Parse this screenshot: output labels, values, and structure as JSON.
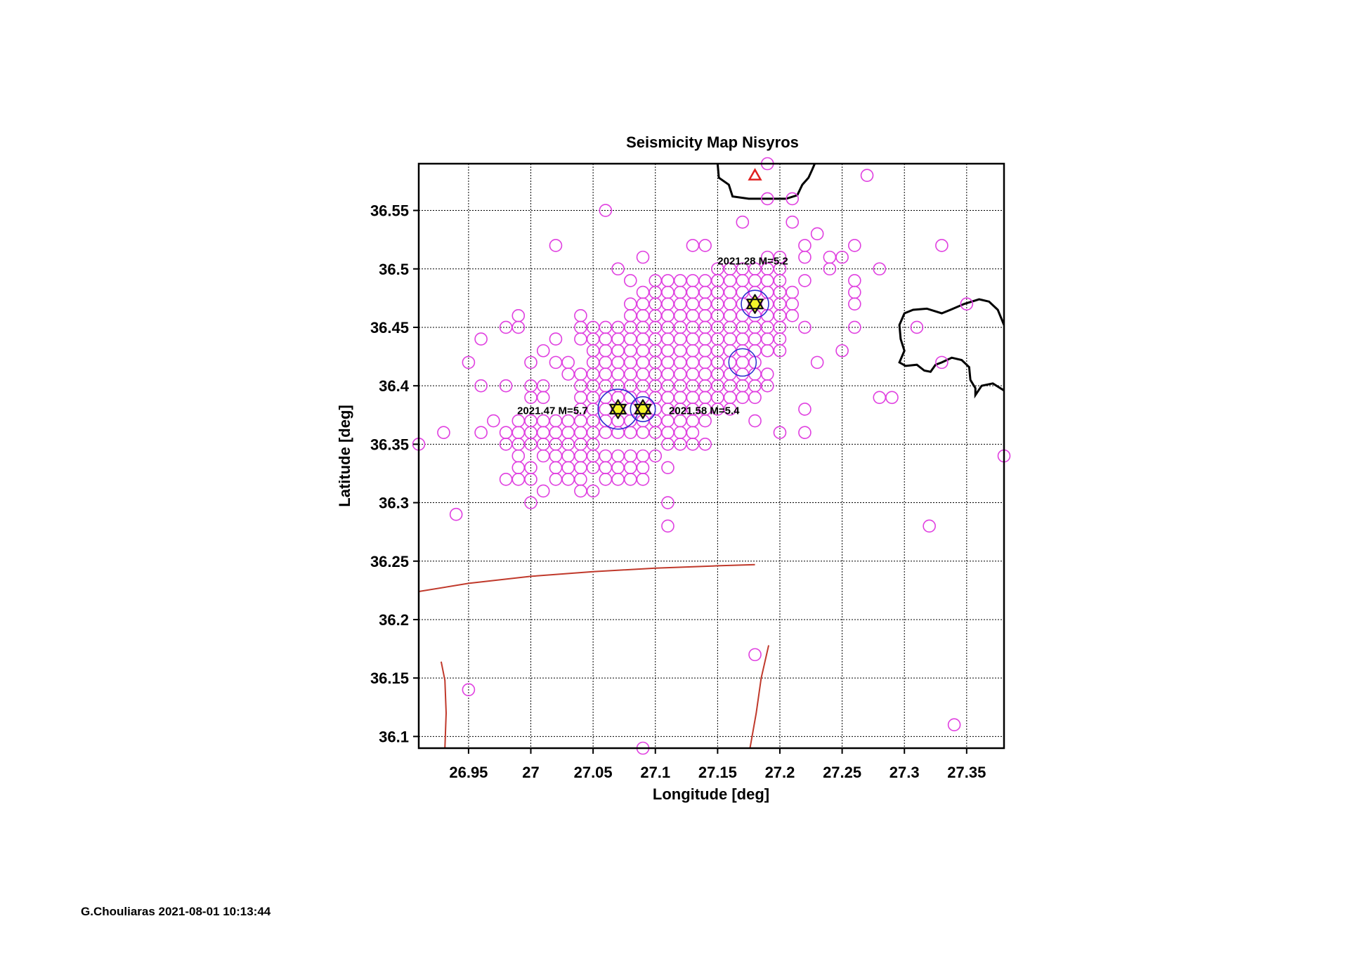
{
  "colors": {
    "event": "#e040e0",
    "mainshock_ring": "#2b2bcf",
    "star_fill": "#f5f52a",
    "star_stroke": "#111111",
    "station": "#e02020",
    "fault": "#c0392b",
    "coast": "#000000",
    "grid": "#000000"
  },
  "footer": "G.Chouliaras 2021-08-01 10:13:44",
  "chart_data": {
    "type": "scatter",
    "title": "Seismicity Map  Nisyros",
    "xlabel": "Longitude [deg]",
    "ylabel": "Latitude [deg]",
    "xlim": [
      26.91,
      27.38
    ],
    "ylim": [
      36.09,
      36.59
    ],
    "xticks": [
      26.95,
      27,
      27.05,
      27.1,
      27.15,
      27.2,
      27.25,
      27.3,
      27.35
    ],
    "xtick_labels": [
      "26.95",
      "27",
      "27.05",
      "27.1",
      "27.15",
      "27.2",
      "27.25",
      "27.3",
      "27.35"
    ],
    "yticks": [
      36.1,
      36.15,
      36.2,
      36.25,
      36.3,
      36.35,
      36.4,
      36.45,
      36.5,
      36.55
    ],
    "ytick_labels": [
      "36.1",
      "36.15",
      "36.2",
      "36.25",
      "36.3",
      "36.35",
      "36.4",
      "36.45",
      "36.5",
      "36.55"
    ],
    "grid": true,
    "events": [
      [
        27.19,
        36.59
      ],
      [
        27.27,
        36.58
      ],
      [
        27.19,
        36.56
      ],
      [
        27.21,
        36.56
      ],
      [
        27.06,
        36.55
      ],
      [
        27.17,
        36.54
      ],
      [
        27.21,
        36.54
      ],
      [
        27.23,
        36.53
      ],
      [
        27.02,
        36.52
      ],
      [
        27.13,
        36.52
      ],
      [
        27.14,
        36.52
      ],
      [
        27.22,
        36.52
      ],
      [
        27.26,
        36.52
      ],
      [
        27.33,
        36.52
      ],
      [
        27.09,
        36.51
      ],
      [
        27.19,
        36.51
      ],
      [
        27.2,
        36.51
      ],
      [
        27.22,
        36.51
      ],
      [
        27.24,
        36.51
      ],
      [
        27.25,
        36.51
      ],
      [
        27.07,
        36.5
      ],
      [
        27.15,
        36.5
      ],
      [
        27.16,
        36.5
      ],
      [
        27.17,
        36.5
      ],
      [
        27.18,
        36.5
      ],
      [
        27.19,
        36.5
      ],
      [
        27.2,
        36.5
      ],
      [
        27.24,
        36.5
      ],
      [
        27.28,
        36.5
      ],
      [
        27.08,
        36.49
      ],
      [
        27.11,
        36.49
      ],
      [
        27.14,
        36.49
      ],
      [
        27.15,
        36.49
      ],
      [
        27.16,
        36.49
      ],
      [
        27.17,
        36.49
      ],
      [
        27.19,
        36.49
      ],
      [
        27.22,
        36.49
      ],
      [
        27.26,
        36.49
      ],
      [
        27.26,
        36.48
      ],
      [
        27.26,
        36.47
      ],
      [
        27.35,
        36.47
      ],
      [
        27.26,
        36.45
      ],
      [
        27.31,
        36.45
      ],
      [
        27.22,
        36.45
      ],
      [
        26.99,
        36.46
      ],
      [
        26.98,
        36.45
      ],
      [
        26.99,
        36.45
      ],
      [
        26.96,
        36.44
      ],
      [
        27.02,
        36.44
      ],
      [
        27.04,
        36.46
      ],
      [
        27.01,
        36.43
      ],
      [
        26.95,
        36.42
      ],
      [
        27.0,
        36.42
      ],
      [
        27.02,
        36.42
      ],
      [
        27.03,
        36.42
      ],
      [
        27.03,
        36.41
      ],
      [
        27.23,
        36.42
      ],
      [
        27.25,
        36.43
      ],
      [
        27.33,
        36.42
      ],
      [
        27.2,
        36.43
      ],
      [
        26.96,
        36.4
      ],
      [
        26.98,
        36.4
      ],
      [
        27.0,
        36.4
      ],
      [
        27.01,
        36.4
      ],
      [
        27.0,
        36.39
      ],
      [
        27.01,
        36.39
      ],
      [
        27.28,
        36.39
      ],
      [
        27.29,
        36.39
      ],
      [
        27.22,
        36.38
      ],
      [
        27.18,
        36.37
      ],
      [
        26.97,
        36.37
      ],
      [
        26.99,
        36.37
      ],
      [
        27.0,
        36.37
      ],
      [
        27.01,
        36.37
      ],
      [
        27.02,
        36.37
      ],
      [
        27.03,
        36.37
      ],
      [
        26.93,
        36.36
      ],
      [
        26.96,
        36.36
      ],
      [
        26.98,
        36.36
      ],
      [
        26.99,
        36.36
      ],
      [
        27.0,
        36.36
      ],
      [
        27.01,
        36.36
      ],
      [
        27.02,
        36.36
      ],
      [
        27.03,
        36.36
      ],
      [
        27.04,
        36.36
      ],
      [
        27.2,
        36.36
      ],
      [
        27.22,
        36.36
      ],
      [
        26.91,
        36.35
      ],
      [
        27.38,
        36.34
      ],
      [
        26.98,
        36.35
      ],
      [
        26.99,
        36.35
      ],
      [
        27.0,
        36.35
      ],
      [
        27.01,
        36.35
      ],
      [
        27.02,
        36.35
      ],
      [
        27.03,
        36.35
      ],
      [
        27.04,
        36.35
      ],
      [
        27.05,
        36.35
      ],
      [
        27.11,
        36.35
      ],
      [
        27.12,
        36.35
      ],
      [
        27.13,
        36.35
      ],
      [
        27.14,
        36.35
      ],
      [
        26.99,
        36.34
      ],
      [
        27.01,
        36.34
      ],
      [
        27.02,
        36.34
      ],
      [
        27.03,
        36.34
      ],
      [
        27.04,
        36.34
      ],
      [
        27.05,
        36.34
      ],
      [
        27.06,
        36.34
      ],
      [
        27.07,
        36.34
      ],
      [
        27.08,
        36.34
      ],
      [
        27.09,
        36.34
      ],
      [
        27.1,
        36.34
      ],
      [
        26.99,
        36.33
      ],
      [
        27.0,
        36.33
      ],
      [
        27.02,
        36.33
      ],
      [
        27.03,
        36.33
      ],
      [
        27.04,
        36.33
      ],
      [
        27.05,
        36.33
      ],
      [
        27.06,
        36.33
      ],
      [
        27.07,
        36.33
      ],
      [
        27.08,
        36.33
      ],
      [
        27.09,
        36.33
      ],
      [
        27.11,
        36.33
      ],
      [
        26.98,
        36.32
      ],
      [
        26.99,
        36.32
      ],
      [
        27.0,
        36.32
      ],
      [
        27.02,
        36.32
      ],
      [
        27.03,
        36.32
      ],
      [
        27.04,
        36.32
      ],
      [
        27.06,
        36.32
      ],
      [
        27.07,
        36.32
      ],
      [
        27.08,
        36.32
      ],
      [
        27.09,
        36.32
      ],
      [
        27.01,
        36.31
      ],
      [
        27.04,
        36.31
      ],
      [
        27.05,
        36.31
      ],
      [
        27.0,
        36.3
      ],
      [
        27.11,
        36.3
      ],
      [
        26.94,
        36.29
      ],
      [
        27.11,
        36.28
      ],
      [
        27.32,
        36.28
      ],
      [
        27.18,
        36.17
      ],
      [
        26.95,
        36.14
      ],
      [
        27.34,
        36.11
      ],
      [
        27.09,
        36.09
      ],
      [
        27.17,
        36.41
      ],
      [
        27.18,
        36.41
      ],
      [
        27.19,
        36.41
      ],
      [
        27.17,
        36.4
      ],
      [
        27.18,
        36.4
      ],
      [
        27.19,
        36.4
      ],
      [
        27.17,
        36.39
      ],
      [
        27.18,
        36.39
      ]
    ],
    "dense_zone": [
      {
        "lat": 36.49,
        "lon_min": 27.1,
        "lon_max": 27.2
      },
      {
        "lat": 36.48,
        "lon_min": 27.09,
        "lon_max": 27.21
      },
      {
        "lat": 36.47,
        "lon_min": 27.08,
        "lon_max": 27.21
      },
      {
        "lat": 36.46,
        "lon_min": 27.08,
        "lon_max": 27.21
      },
      {
        "lat": 36.45,
        "lon_min": 27.04,
        "lon_max": 27.2
      },
      {
        "lat": 36.44,
        "lon_min": 27.04,
        "lon_max": 27.2
      },
      {
        "lat": 36.43,
        "lon_min": 27.05,
        "lon_max": 27.19
      },
      {
        "lat": 36.42,
        "lon_min": 27.05,
        "lon_max": 27.18
      },
      {
        "lat": 36.41,
        "lon_min": 27.04,
        "lon_max": 27.17
      },
      {
        "lat": 36.4,
        "lon_min": 27.04,
        "lon_max": 27.16
      },
      {
        "lat": 36.39,
        "lon_min": 27.04,
        "lon_max": 27.16
      },
      {
        "lat": 36.38,
        "lon_min": 27.04,
        "lon_max": 27.16
      },
      {
        "lat": 36.37,
        "lon_min": 27.04,
        "lon_max": 27.14
      },
      {
        "lat": 36.36,
        "lon_min": 27.05,
        "lon_max": 27.13
      }
    ],
    "mainshocks": [
      {
        "lon": 27.07,
        "lat": 36.38,
        "label": "2021.47 M=5.7",
        "ring_r": 0.016
      },
      {
        "lon": 27.09,
        "lat": 36.38,
        "label": "2021.58 M=5.4",
        "ring_r": 0.01
      },
      {
        "lon": 27.18,
        "lat": 36.47,
        "label": "2021.28 M=5.2",
        "ring_r": 0.011
      }
    ],
    "extra_ring": {
      "lon": 27.17,
      "lat": 36.42,
      "ring_r": 0.011
    },
    "station": {
      "lon": 27.18,
      "lat": 36.58
    },
    "coastline_north": [
      [
        27.15,
        36.59
      ],
      [
        27.151,
        36.578
      ],
      [
        27.159,
        36.572
      ],
      [
        27.162,
        36.562
      ],
      [
        27.175,
        36.56
      ],
      [
        27.19,
        36.56
      ],
      [
        27.205,
        36.56
      ],
      [
        27.214,
        36.563
      ],
      [
        27.218,
        36.572
      ],
      [
        27.223,
        36.578
      ],
      [
        27.226,
        36.585
      ],
      [
        27.228,
        36.59
      ]
    ],
    "coastline_east": [
      [
        27.38,
        36.452
      ],
      [
        27.375,
        36.465
      ],
      [
        27.368,
        36.472
      ],
      [
        27.36,
        36.474
      ],
      [
        27.348,
        36.47
      ],
      [
        27.337,
        36.465
      ],
      [
        27.33,
        36.462
      ],
      [
        27.318,
        36.466
      ],
      [
        27.307,
        36.465
      ],
      [
        27.3,
        36.462
      ],
      [
        27.296,
        36.452
      ],
      [
        27.297,
        36.44
      ],
      [
        27.3,
        36.43
      ],
      [
        27.296,
        36.42
      ],
      [
        27.301,
        36.417
      ],
      [
        27.31,
        36.418
      ],
      [
        27.316,
        36.413
      ],
      [
        27.321,
        36.412
      ],
      [
        27.325,
        36.418
      ],
      [
        27.33,
        36.42
      ],
      [
        27.338,
        36.424
      ],
      [
        27.346,
        36.422
      ],
      [
        27.352,
        36.416
      ],
      [
        27.353,
        36.405
      ],
      [
        27.357,
        36.398
      ],
      [
        27.357,
        36.392
      ],
      [
        27.362,
        36.4
      ],
      [
        27.371,
        36.402
      ],
      [
        27.38,
        36.396
      ]
    ],
    "faults": [
      [
        [
          26.91,
          36.224
        ],
        [
          26.95,
          36.231
        ],
        [
          27.0,
          36.237
        ],
        [
          27.05,
          36.241
        ],
        [
          27.1,
          36.244
        ],
        [
          27.15,
          36.246
        ],
        [
          27.18,
          36.247
        ]
      ],
      [
        [
          26.928,
          36.164
        ],
        [
          26.931,
          36.148
        ],
        [
          26.932,
          36.12
        ],
        [
          26.931,
          36.09
        ]
      ],
      [
        [
          27.176,
          36.09
        ],
        [
          27.181,
          36.12
        ],
        [
          27.185,
          36.15
        ],
        [
          27.191,
          36.178
        ]
      ]
    ]
  }
}
